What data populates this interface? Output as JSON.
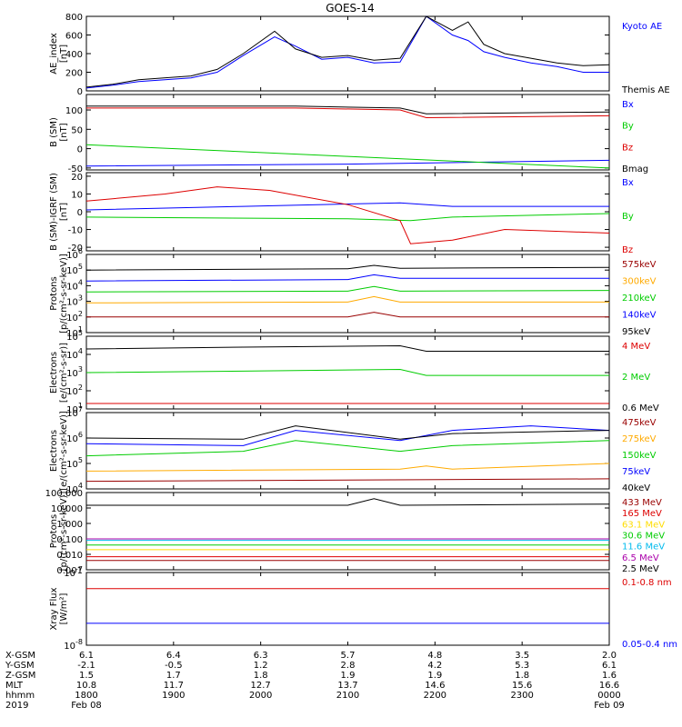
{
  "title": "GOES-14",
  "colors": {
    "black": "#000000",
    "blue": "#0000ff",
    "green": "#00cc00",
    "red": "#dd0000",
    "orange": "#ffaa00",
    "darkred": "#990000",
    "yellow": "#ffdd00",
    "cyan": "#00bbee",
    "purple": "#aa00aa"
  },
  "chart_data": [
    {
      "type": "line",
      "ylabel": [
        "AE_index",
        "[nT]"
      ],
      "ylim": [
        0,
        800
      ],
      "yticks": [
        "0",
        "200",
        "400",
        "600",
        "800"
      ],
      "series": [
        {
          "name": "Kyoto AE",
          "color": "blue",
          "x": [
            0,
            0.05,
            0.1,
            0.2,
            0.25,
            0.3,
            0.36,
            0.4,
            0.45,
            0.5,
            0.55,
            0.6,
            0.65,
            0.7,
            0.73,
            0.76,
            0.8,
            0.85,
            0.9,
            0.95,
            1.0
          ],
          "y": [
            30,
            60,
            100,
            140,
            200,
            380,
            580,
            480,
            340,
            360,
            300,
            310,
            800,
            600,
            540,
            420,
            360,
            300,
            260,
            200,
            200
          ]
        },
        {
          "name": "Themis AE",
          "color": "black",
          "x": [
            0,
            0.05,
            0.1,
            0.2,
            0.25,
            0.3,
            0.36,
            0.4,
            0.45,
            0.5,
            0.55,
            0.6,
            0.65,
            0.7,
            0.73,
            0.76,
            0.8,
            0.85,
            0.9,
            0.95,
            1.0
          ],
          "y": [
            40,
            70,
            120,
            160,
            230,
            400,
            640,
            450,
            360,
            380,
            330,
            350,
            830,
            650,
            740,
            500,
            400,
            350,
            300,
            270,
            280
          ]
        }
      ]
    },
    {
      "type": "line",
      "ylabel": [
        "B (SM)",
        "[nT]"
      ],
      "ylim": [
        -55,
        140
      ],
      "yticks": [
        "-50",
        "0",
        "50",
        "100"
      ],
      "series": [
        {
          "name": "Bx",
          "color": "blue",
          "x": [
            0,
            0.5,
            1
          ],
          "y": [
            -45,
            -40,
            -30
          ]
        },
        {
          "name": "By",
          "color": "green",
          "x": [
            0,
            0.5,
            0.75,
            1
          ],
          "y": [
            10,
            -20,
            -35,
            -50
          ]
        },
        {
          "name": "Bz",
          "color": "red",
          "x": [
            0,
            0.4,
            0.6,
            0.65,
            1
          ],
          "y": [
            105,
            105,
            100,
            80,
            85
          ]
        },
        {
          "name": "Bmag",
          "color": "black",
          "x": [
            0,
            0.4,
            0.6,
            0.65,
            1
          ],
          "y": [
            110,
            110,
            105,
            90,
            95
          ]
        }
      ]
    },
    {
      "type": "line",
      "ylabel": [
        "B (SM)-IGRF (SM)",
        "[nT]"
      ],
      "ylim": [
        -22,
        22
      ],
      "yticks": [
        "-20",
        "-10",
        "0",
        "10",
        "20"
      ],
      "series": [
        {
          "name": "Bx",
          "color": "blue",
          "x": [
            0,
            0.3,
            0.6,
            0.7,
            1
          ],
          "y": [
            1,
            3,
            5,
            3,
            3
          ]
        },
        {
          "name": "By",
          "color": "green",
          "x": [
            0,
            0.5,
            0.62,
            0.7,
            1
          ],
          "y": [
            -3,
            -4,
            -5,
            -3,
            -1
          ]
        },
        {
          "name": "Bz",
          "color": "red",
          "x": [
            0,
            0.15,
            0.25,
            0.35,
            0.5,
            0.6,
            0.62,
            0.7,
            0.8,
            1
          ],
          "y": [
            6,
            10,
            14,
            12,
            4,
            -5,
            -18,
            -16,
            -10,
            -12
          ]
        }
      ]
    },
    {
      "type": "line",
      "log": true,
      "ylabel": [
        "Protons",
        "[p/(cm²-s-sr-keV)]"
      ],
      "ylim": [
        10,
        1000000
      ],
      "yticks": [
        "10^1",
        "10^2",
        "10^3",
        "10^4",
        "10^5",
        "10^6"
      ],
      "series": [
        {
          "name": "575keV",
          "color": "darkred",
          "x": [
            0,
            0.5,
            0.55,
            0.6,
            1
          ],
          "y": [
            100,
            100,
            200,
            100,
            100
          ]
        },
        {
          "name": "300keV",
          "color": "orange",
          "x": [
            0,
            0.5,
            0.55,
            0.6,
            1
          ],
          "y": [
            800,
            900,
            2000,
            900,
            900
          ]
        },
        {
          "name": "210keV",
          "color": "green",
          "x": [
            0,
            0.5,
            0.55,
            0.6,
            1
          ],
          "y": [
            4000,
            4500,
            9000,
            4500,
            5000
          ]
        },
        {
          "name": "140keV",
          "color": "blue",
          "x": [
            0,
            0.5,
            0.55,
            0.6,
            1
          ],
          "y": [
            20000,
            25000,
            50000,
            30000,
            30000
          ]
        },
        {
          "name": "95keV",
          "color": "black",
          "x": [
            0,
            0.5,
            0.55,
            0.6,
            1
          ],
          "y": [
            100000,
            120000,
            200000,
            130000,
            150000
          ]
        }
      ]
    },
    {
      "type": "line",
      "log": true,
      "ylabel": [
        "Electrons",
        "[e/(cm²-s-sr)]"
      ],
      "ylim": [
        10,
        100000
      ],
      "yticks": [
        "10^1",
        "10^2",
        "10^3",
        "10^4",
        "10^5"
      ],
      "series": [
        {
          "name": "4 MeV",
          "color": "red",
          "x": [
            0,
            1
          ],
          "y": [
            20,
            20
          ]
        },
        {
          "name": "2 MeV",
          "color": "green",
          "x": [
            0,
            0.3,
            0.6,
            0.65,
            1
          ],
          "y": [
            1000,
            1200,
            1500,
            700,
            700
          ]
        },
        {
          "name": "0.6 MeV",
          "color": "black",
          "x": [
            0,
            0.3,
            0.6,
            0.65,
            1
          ],
          "y": [
            20000,
            25000,
            30000,
            15000,
            15000
          ]
        }
      ]
    },
    {
      "type": "line",
      "log": true,
      "ylabel": [
        "Electrons",
        "[e/(cm²-s-sr-keV)]"
      ],
      "ylim": [
        10000,
        10000000
      ],
      "yticks": [
        "10^4",
        "10^5",
        "10^6",
        "10^7"
      ],
      "series": [
        {
          "name": "475keV",
          "color": "darkred",
          "x": [
            0,
            1
          ],
          "y": [
            20000,
            25000
          ]
        },
        {
          "name": "275keV",
          "color": "orange",
          "x": [
            0,
            0.6,
            0.65,
            0.7,
            1
          ],
          "y": [
            50000,
            60000,
            80000,
            60000,
            100000
          ]
        },
        {
          "name": "150keV",
          "color": "green",
          "x": [
            0,
            0.3,
            0.4,
            0.6,
            0.7,
            1
          ],
          "y": [
            200000,
            300000,
            800000,
            300000,
            500000,
            800000
          ]
        },
        {
          "name": "75keV",
          "color": "blue",
          "x": [
            0,
            0.3,
            0.4,
            0.6,
            0.7,
            0.85,
            1
          ],
          "y": [
            600000,
            500000,
            2000000,
            800000,
            2000000,
            3000000,
            2000000
          ]
        },
        {
          "name": "40keV",
          "color": "black",
          "x": [
            0,
            0.3,
            0.4,
            0.6,
            0.7,
            1
          ],
          "y": [
            1000000,
            900000,
            3000000,
            900000,
            1500000,
            2000000
          ]
        }
      ]
    },
    {
      "type": "line",
      "log": true,
      "ylabel": [
        "Protons",
        "[p/(cm²-s-sr-keV)]"
      ],
      "ylim": [
        0.001,
        100
      ],
      "yticks": [
        "0.001",
        "0.010",
        "0.100",
        "1.000",
        "10.000",
        "100.000"
      ],
      "series": [
        {
          "name": "433 MeV",
          "color": "darkred",
          "x": [
            0,
            1
          ],
          "y": [
            0.004,
            0.004
          ]
        },
        {
          "name": "165 MeV",
          "color": "red",
          "x": [
            0,
            1
          ],
          "y": [
            0.007,
            0.007
          ]
        },
        {
          "name": "63.1 MeV",
          "color": "yellow",
          "x": [
            0,
            1
          ],
          "y": [
            0.02,
            0.02
          ]
        },
        {
          "name": "30.6 MeV",
          "color": "green",
          "x": [
            0,
            1
          ],
          "y": [
            0.04,
            0.04
          ]
        },
        {
          "name": "11.6 MeV",
          "color": "cyan",
          "x": [
            0,
            1
          ],
          "y": [
            0.08,
            0.08
          ]
        },
        {
          "name": "6.5 MeV",
          "color": "purple",
          "x": [
            0,
            1
          ],
          "y": [
            0.1,
            0.1
          ]
        },
        {
          "name": "2.5 MeV",
          "color": "black",
          "x": [
            0,
            0.5,
            0.55,
            0.6,
            1
          ],
          "y": [
            15,
            15,
            40,
            15,
            18
          ]
        }
      ]
    },
    {
      "type": "line",
      "log": true,
      "ylabel": [
        "Xray Flux",
        "[W/m²]"
      ],
      "ylim": [
        1e-08,
        1e-07
      ],
      "yticks": [
        "10^-8",
        "10^-7"
      ],
      "series": [
        {
          "name": "0.1-0.8 nm",
          "color": "red",
          "x": [
            0,
            1
          ],
          "y": [
            6e-08,
            6e-08
          ]
        },
        {
          "name": "0.05-0.4 nm",
          "color": "blue",
          "x": [
            0,
            1
          ],
          "y": [
            2e-08,
            2e-08
          ]
        }
      ]
    }
  ],
  "time_axis": {
    "rows": [
      {
        "label": "X-GSM",
        "values": [
          "6.1",
          "6.4",
          "6.3",
          "5.7",
          "4.8",
          "3.5",
          "2.0"
        ]
      },
      {
        "label": "Y-GSM",
        "values": [
          "-2.1",
          "-0.5",
          "1.2",
          "2.8",
          "4.2",
          "5.3",
          "6.1"
        ]
      },
      {
        "label": "Z-GSM",
        "values": [
          "1.5",
          "1.7",
          "1.8",
          "1.9",
          "1.9",
          "1.8",
          "1.6"
        ]
      },
      {
        "label": "MLT",
        "values": [
          "10.8",
          "11.7",
          "12.7",
          "13.7",
          "14.6",
          "15.6",
          "16.6"
        ]
      },
      {
        "label": "hhmm",
        "values": [
          "1800",
          "1900",
          "2000",
          "2100",
          "2200",
          "2300",
          "0000"
        ]
      },
      {
        "label": "2019",
        "values": [
          "Feb 08",
          "",
          "",
          "",
          "",
          "",
          "Feb 09"
        ]
      }
    ]
  }
}
